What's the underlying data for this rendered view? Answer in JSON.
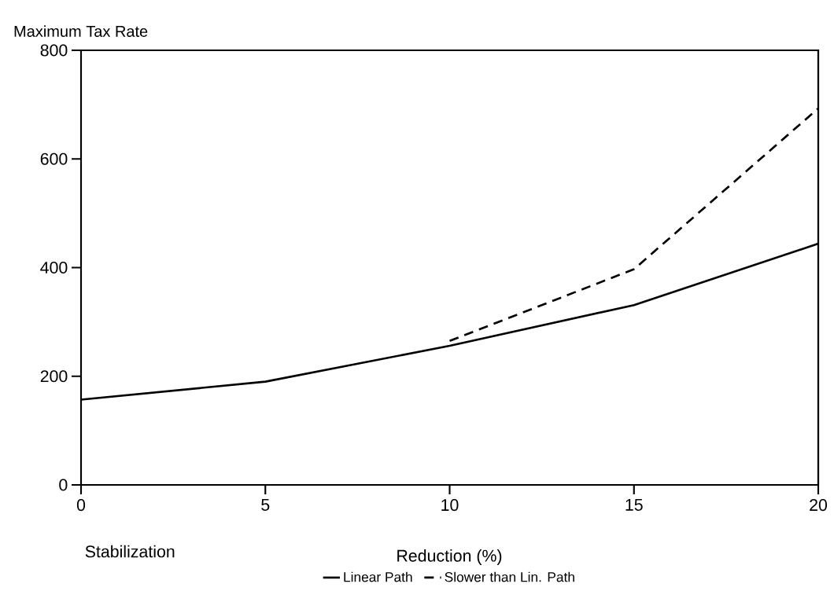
{
  "chart_data": {
    "type": "line",
    "ylabel": "Maximum Tax Rate",
    "xlabel": "Reduction (%)",
    "annotations": [
      "Stabilization"
    ],
    "xlim": [
      0,
      20
    ],
    "ylim": [
      0,
      800
    ],
    "xticks": [
      0,
      5,
      10,
      15,
      20
    ],
    "yticks": [
      0,
      200,
      400,
      600,
      800
    ],
    "legend": "bottom",
    "series": [
      {
        "name": "Linear Path",
        "color": "#000000",
        "line_style": "solid",
        "x": [
          0,
          5,
          10,
          15,
          20
        ],
        "values": [
          157,
          190,
          256,
          331,
          444
        ]
      },
      {
        "name": "Slower than Lin. Path",
        "color": "#000000",
        "line_style": "dashed",
        "x": [
          10,
          15,
          20
        ],
        "values": [
          265,
          397,
          693
        ]
      }
    ]
  }
}
